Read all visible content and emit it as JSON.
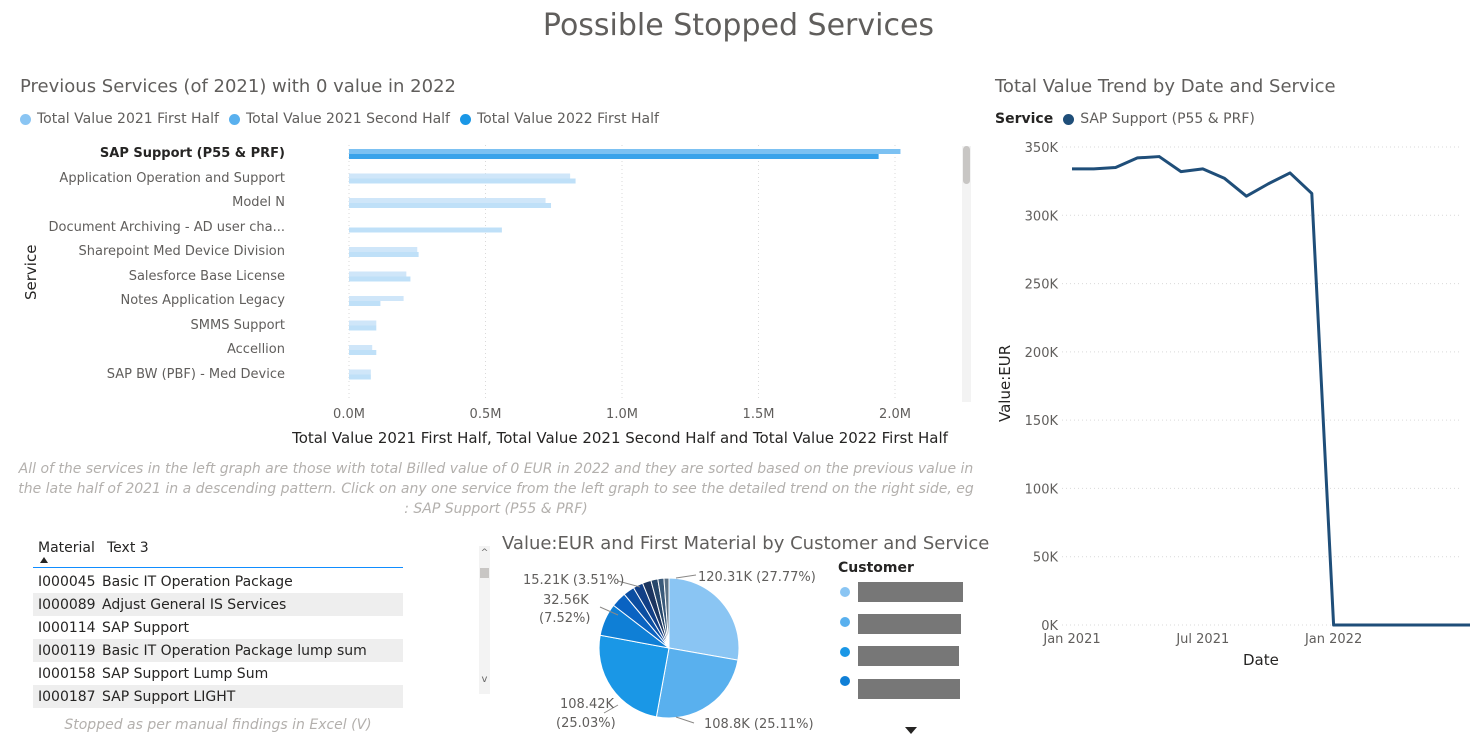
{
  "page": {
    "title": "Possible Stopped Services"
  },
  "bar_visual": {
    "title": "Previous Services (of 2021) with 0 value in 2022",
    "y_axis_title": "Service",
    "x_axis_title": "Total Value 2021 First Half, Total Value 2021 Second Half and Total Value 2022 First Half",
    "x_ticks": [
      "0.0M",
      "0.5M",
      "1.0M",
      "1.5M",
      "2.0M"
    ]
  },
  "trend_visual": {
    "title": "Total Value Trend by Date and Service",
    "legend_title": "Service",
    "legend_item": "SAP Support (P55 & PRF)",
    "y_axis_title": "Value:EUR",
    "x_axis_title": "Date",
    "y_ticks": [
      "0K",
      "50K",
      "100K",
      "150K",
      "200K",
      "250K",
      "300K",
      "350K"
    ],
    "x_ticks": [
      "Jan 2021",
      "Jul 2021",
      "Jan 2022"
    ]
  },
  "note_text": "All of the services in the left graph are those with total Billed value of 0 EUR in 2022 and they are sorted based on the previous value in the late half of 2021 in a descending pattern. Click on any one service from the left graph to see the detailed trend on the right side, eg : SAP Support (P55 & PRF)",
  "table": {
    "col1": "Material",
    "col2": "Text 3",
    "rows": [
      {
        "material": "I000045",
        "text": "Basic IT Operation Package"
      },
      {
        "material": "I000089",
        "text": "Adjust General IS Services"
      },
      {
        "material": "I000114",
        "text": "SAP Support"
      },
      {
        "material": "I000119",
        "text": "Basic IT Operation Package lump sum"
      },
      {
        "material": "I000158",
        "text": "SAP Support Lump Sum"
      },
      {
        "material": "I000187",
        "text": "SAP Support LIGHT"
      }
    ],
    "footer": "Stopped as per manual findings in Excel (V)"
  },
  "pie_visual": {
    "title": "Value:EUR and First Material by Customer and Service",
    "legend_title": "Customer",
    "labels": {
      "a": "120.31K (27.77%)",
      "b": "108.8K (25.11%)",
      "c1": "108.42K",
      "c2": "(25.03%)",
      "d1": "32.56K",
      "d2": "(7.52%)",
      "e": "15.21K (3.51%)"
    }
  },
  "colors": {
    "bar_2021_h1": "#a9d2f5",
    "bar_2021_h2": "#7cc1f2",
    "bar_2022_h1": "#3aa3ea",
    "line": "#1f4e79",
    "legend_2021_h1": "#8ac5f3",
    "legend_2021_h2": "#59b0ee",
    "legend_2022_h1": "#1a97e6"
  },
  "chart_data": [
    {
      "type": "bar",
      "orientation": "horizontal",
      "title": "Previous Services (of 2021) with 0 value in 2022",
      "ylabel": "Service",
      "xlabel": "Total Value 2021 First Half, Total Value 2021 Second Half and Total Value 2022 First Half",
      "xlim": [
        0,
        2100000
      ],
      "categories": [
        "SAP Support (P55 & PRF)",
        "Application Operation and Support",
        "Model N",
        "Document Archiving - AD user cha...",
        "Sharepoint Med Device Division",
        "Salesforce Base License",
        "Notes Application Legacy",
        "SMMS Support",
        "Accellion",
        "SAP BW (PBF) - Med Device"
      ],
      "series": [
        {
          "name": "Total Value 2021 First Half",
          "values": [
            2020000,
            810000,
            720000,
            0,
            250000,
            210000,
            200000,
            100000,
            85000,
            80000
          ]
        },
        {
          "name": "Total Value 2021 Second Half",
          "values": [
            1940000,
            830000,
            740000,
            560000,
            255000,
            225000,
            115000,
            100000,
            100000,
            80000
          ]
        },
        {
          "name": "Total Value 2022 First Half",
          "values": [
            0,
            0,
            0,
            0,
            0,
            0,
            0,
            0,
            0,
            0
          ]
        }
      ],
      "legend": "top-left",
      "grid": true
    },
    {
      "type": "line",
      "title": "Total Value Trend by Date and Service",
      "xlabel": "Date",
      "ylabel": "Value:EUR",
      "ylim": [
        0,
        350000
      ],
      "x": [
        "2021-01",
        "2021-02",
        "2021-03",
        "2021-04",
        "2021-05",
        "2021-06",
        "2021-07",
        "2021-08",
        "2021-09",
        "2021-10",
        "2021-11",
        "2021-12",
        "2022-01",
        "2022-02",
        "2022-03",
        "2022-04",
        "2022-05",
        "2022-06"
      ],
      "series": [
        {
          "name": "SAP Support (P55 & PRF)",
          "values": [
            334000,
            334000,
            335000,
            342000,
            343000,
            332000,
            334000,
            327000,
            314000,
            323000,
            331000,
            316000,
            0,
            0,
            0,
            0,
            0,
            0
          ]
        }
      ],
      "legend": "top-left"
    },
    {
      "type": "pie",
      "title": "Value:EUR and First Material by Customer and Service",
      "values": [
        120310,
        108800,
        108420,
        32560,
        15210
      ],
      "labels": [
        "120.31K (27.77%)",
        "108.8K (25.11%)",
        "108.42K (25.03%)",
        "32.56K (7.52%)",
        "15.21K (3.51%)"
      ],
      "legend": "right"
    }
  ]
}
